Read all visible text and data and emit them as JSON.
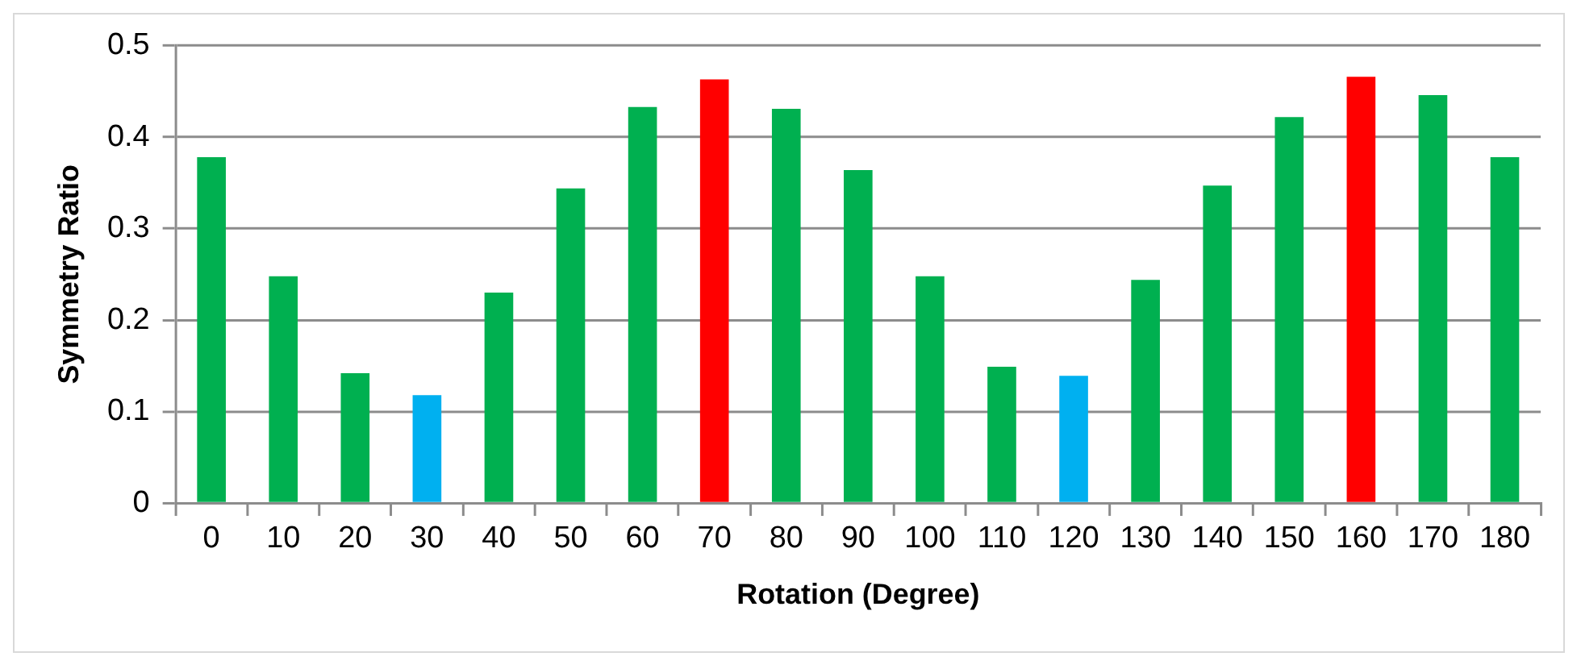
{
  "chart_data": {
    "type": "bar",
    "xlabel": "Rotation (Degree)",
    "ylabel": "Symmetry Ratio",
    "categories": [
      "0",
      "10",
      "20",
      "30",
      "40",
      "50",
      "60",
      "70",
      "80",
      "90",
      "100",
      "110",
      "120",
      "130",
      "140",
      "150",
      "160",
      "170",
      "180"
    ],
    "values": [
      0.378,
      0.248,
      0.142,
      0.118,
      0.23,
      0.344,
      0.433,
      0.463,
      0.431,
      0.364,
      0.248,
      0.149,
      0.139,
      0.244,
      0.347,
      0.422,
      0.466,
      0.446,
      0.378
    ],
    "colors": [
      "#00b050",
      "#00b050",
      "#00b050",
      "#00b0f0",
      "#00b050",
      "#00b050",
      "#00b050",
      "#ff0000",
      "#00b050",
      "#00b050",
      "#00b050",
      "#00b050",
      "#00b0f0",
      "#00b050",
      "#00b050",
      "#00b050",
      "#ff0000",
      "#00b050",
      "#00b050"
    ],
    "ylim": [
      0,
      0.5
    ],
    "yticks": [
      0,
      0.1,
      0.2,
      0.3,
      0.4,
      0.5
    ],
    "grid": "y",
    "legend": false
  }
}
